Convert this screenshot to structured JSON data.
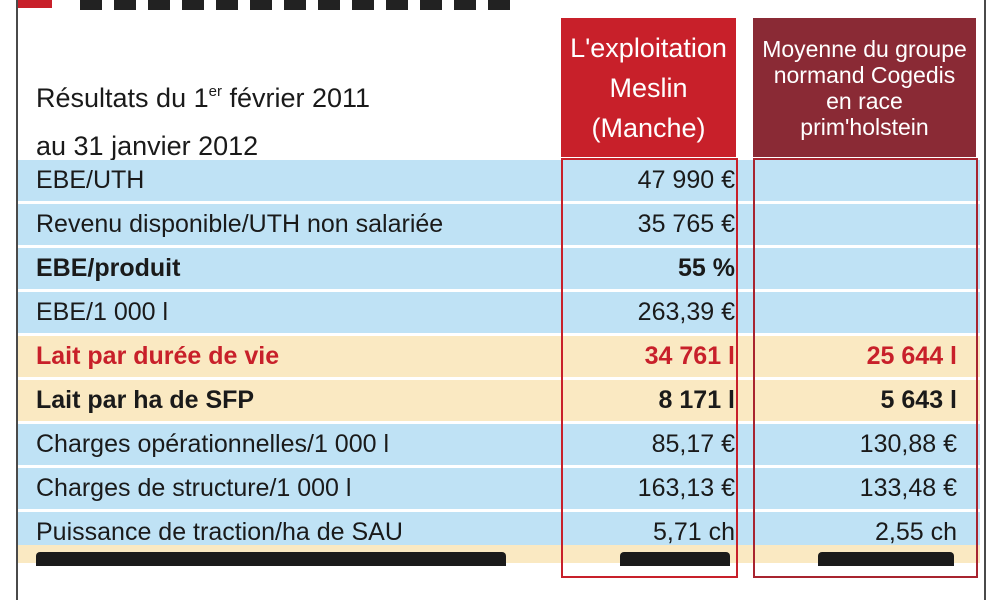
{
  "caption": {
    "line1_prefix": "Résultats du 1",
    "line1_sup": "er",
    "line1_suffix": " février 2011",
    "line2": "au 31 janvier 2012"
  },
  "columns": {
    "meslin": [
      "L'exploitation",
      "Meslin",
      "(Manche)"
    ],
    "moyenne": [
      "Moyenne du groupe",
      "normand Cogedis",
      "en race",
      "prim'holstein"
    ]
  },
  "colors": {
    "blue_row": "#bfe2f5",
    "beige_row": "#fae9c2",
    "meslin_header": "#c8202a",
    "moyenne_header": "#8a2a35",
    "highlight_text": "#c8202a"
  },
  "rows": [
    {
      "label": "EBE/UTH",
      "meslin": "47 990 €",
      "moyenne": ""
    },
    {
      "label": "Revenu disponible/UTH non salariée",
      "meslin": "35 765 €",
      "moyenne": ""
    },
    {
      "label": "EBE/produit",
      "meslin": "55 %",
      "moyenne": ""
    },
    {
      "label": "EBE/1 000 l",
      "meslin": "263,39 €",
      "moyenne": ""
    },
    {
      "label": "Lait par durée de vie",
      "meslin": "34 761 l",
      "moyenne": "25 644 l"
    },
    {
      "label": "Lait par ha de SFP",
      "meslin": "8 171 l",
      "moyenne": "5 643 l"
    },
    {
      "label": "Charges opérationnelles/1 000 l",
      "meslin": "85,17 €",
      "moyenne": "130,88 €"
    },
    {
      "label": "Charges de structure/1 000 l",
      "meslin": "163,13 €",
      "moyenne": "133,48 €"
    },
    {
      "label": "Puissance de traction/ha de SAU",
      "meslin": "5,71 ch",
      "moyenne": "2,55 ch"
    }
  ]
}
